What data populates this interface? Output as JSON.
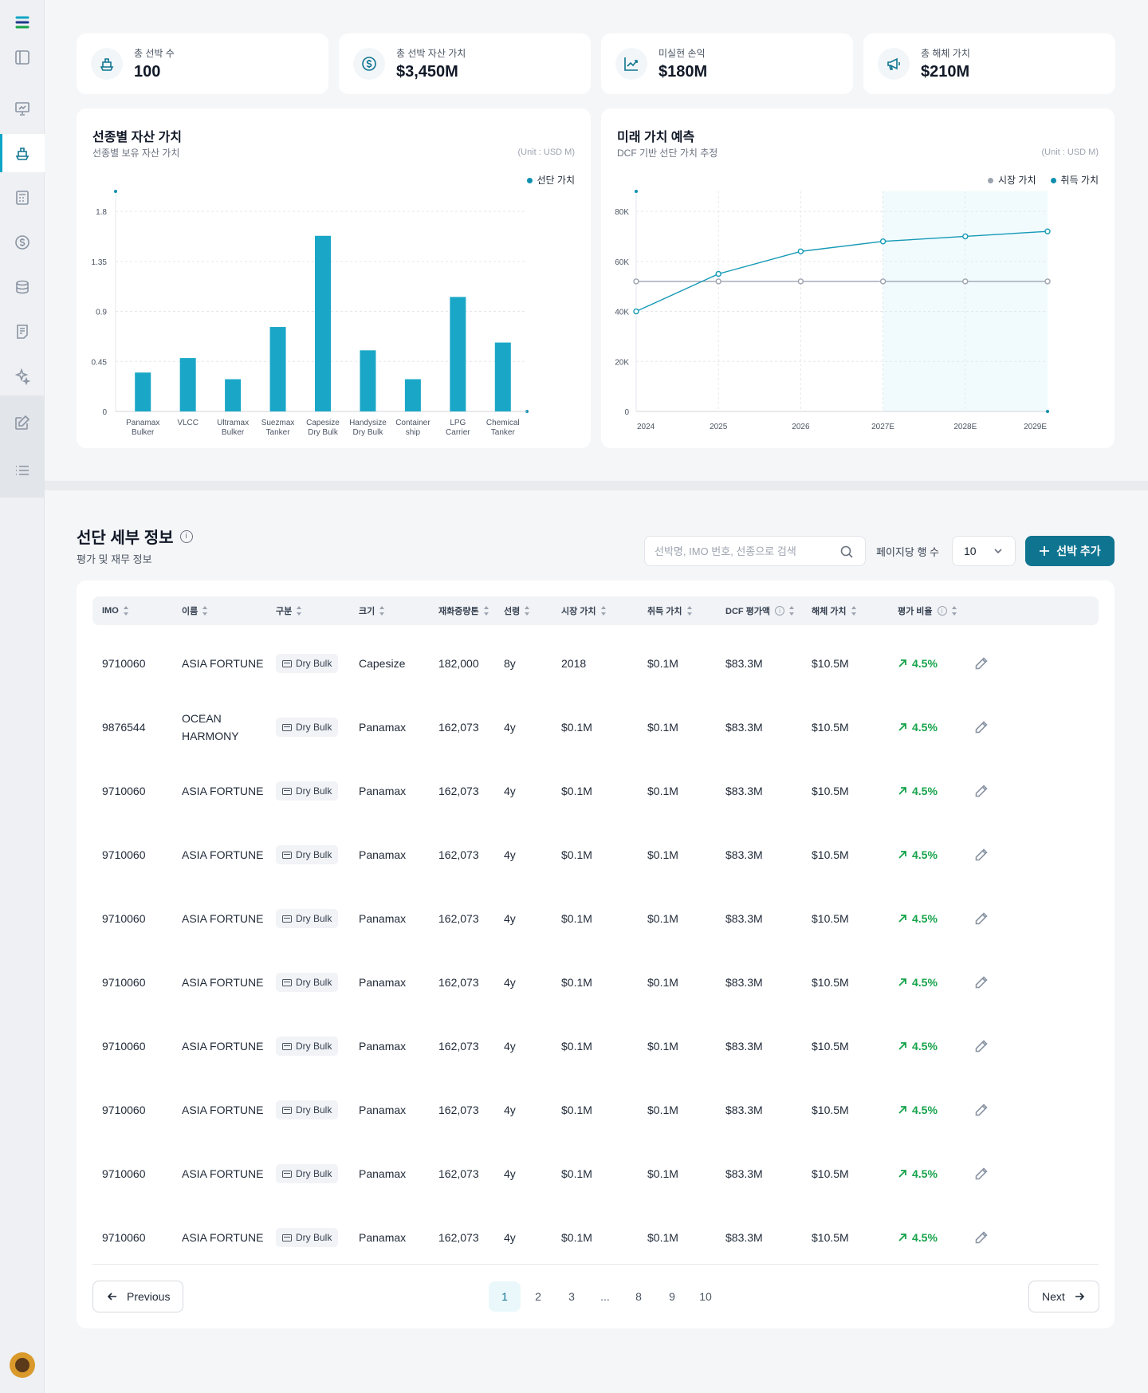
{
  "kpis": [
    {
      "label": "총 선박 수",
      "value": "100",
      "icon": "ship-icon"
    },
    {
      "label": "총 선박 자산 가치",
      "value": "$3,450M",
      "icon": "dollar-icon"
    },
    {
      "label": "미실현 손익",
      "value": "$180M",
      "icon": "chart-line-icon"
    },
    {
      "label": "총 해체 가치",
      "value": "$210M",
      "icon": "megaphone-icon"
    }
  ],
  "bar_card": {
    "title": "선종별 자산 가치",
    "subtitle": "선종별 보유 자산 가치",
    "unit": "(Unit : USD M)",
    "legend": "선단 가치"
  },
  "line_card": {
    "title": "미래 가치 예측",
    "subtitle": "DCF 기반 선단 가치 추정",
    "unit": "(Unit : USD M)",
    "legend_market": "시장 가치",
    "legend_acq": "취득 가치"
  },
  "chart_data": [
    {
      "type": "bar",
      "categories": [
        [
          "Panamax",
          "Bulker"
        ],
        [
          "VLCC"
        ],
        [
          "Ultramax",
          "Bulker"
        ],
        [
          "Suezmax",
          "Tanker"
        ],
        [
          "Capesize",
          "Dry Bulk"
        ],
        [
          "Handysize",
          "Dry Bulk"
        ],
        [
          "Container",
          "ship"
        ],
        [
          "LPG",
          "Carrier"
        ],
        [
          "Chemical",
          "Tanker"
        ]
      ],
      "series": [
        {
          "name": "선단 가치",
          "values": [
            0.35,
            0.48,
            0.29,
            0.76,
            1.58,
            0.55,
            0.29,
            1.03,
            0.62
          ]
        }
      ],
      "yticks": [
        "0",
        "0.45",
        "0.9",
        "1.35",
        "1.8"
      ],
      "ylim": [
        0,
        1.98
      ],
      "color": "#1aa7c7"
    },
    {
      "type": "line",
      "x": [
        "2024",
        "2025",
        "2026",
        "2027E",
        "2028E",
        "2029E"
      ],
      "series": [
        {
          "name": "시장 가치",
          "values": [
            52000,
            52000,
            52000,
            52000,
            52000,
            52000
          ],
          "color": "#9ca3af"
        },
        {
          "name": "취득 가치",
          "values": [
            40000,
            55000,
            64000,
            68000,
            70000,
            72000
          ],
          "color": "#1599b6"
        }
      ],
      "yticks": [
        "0",
        "20K",
        "40K",
        "60K",
        "80K"
      ],
      "ylim": [
        0,
        88000
      ],
      "forecast_from": "2027E"
    }
  ],
  "section": {
    "title": "선단 세부 정보",
    "subtitle": "평가 및 재무 정보",
    "search_placeholder": "선박명, IMO 번호, 선종으로 검색",
    "rows_label": "페이지당 행 수",
    "rows_value": "10",
    "add_label": "선박 추가"
  },
  "columns": [
    "IMO",
    "이름",
    "구분",
    "크기",
    "재화중량톤",
    "선령",
    "시장 가치",
    "취득 가치",
    "DCF 평가액",
    "해체 가치",
    "평가 비율"
  ],
  "rows": [
    {
      "imo": "9710060",
      "name": "ASIA FORTUNE",
      "type": "Dry Bulk",
      "size": "Capesize",
      "dwt": "182,000",
      "age": "8y",
      "market": "2018",
      "acq": "$0.1M",
      "dcf": "$83.3M",
      "scrap": "$10.5M",
      "rate": "4.5%"
    },
    {
      "imo": "9876544",
      "name": "OCEAN HARMONY",
      "type": "Dry Bulk",
      "size": "Panamax",
      "dwt": "162,073",
      "age": "4y",
      "market": "$0.1M",
      "acq": "$0.1M",
      "dcf": "$83.3M",
      "scrap": "$10.5M",
      "rate": "4.5%"
    },
    {
      "imo": "9710060",
      "name": "ASIA FORTUNE",
      "type": "Dry Bulk",
      "size": "Panamax",
      "dwt": "162,073",
      "age": "4y",
      "market": "$0.1M",
      "acq": "$0.1M",
      "dcf": "$83.3M",
      "scrap": "$10.5M",
      "rate": "4.5%"
    },
    {
      "imo": "9710060",
      "name": "ASIA FORTUNE",
      "type": "Dry Bulk",
      "size": "Panamax",
      "dwt": "162,073",
      "age": "4y",
      "market": "$0.1M",
      "acq": "$0.1M",
      "dcf": "$83.3M",
      "scrap": "$10.5M",
      "rate": "4.5%"
    },
    {
      "imo": "9710060",
      "name": "ASIA FORTUNE",
      "type": "Dry Bulk",
      "size": "Panamax",
      "dwt": "162,073",
      "age": "4y",
      "market": "$0.1M",
      "acq": "$0.1M",
      "dcf": "$83.3M",
      "scrap": "$10.5M",
      "rate": "4.5%"
    },
    {
      "imo": "9710060",
      "name": "ASIA FORTUNE",
      "type": "Dry Bulk",
      "size": "Panamax",
      "dwt": "162,073",
      "age": "4y",
      "market": "$0.1M",
      "acq": "$0.1M",
      "dcf": "$83.3M",
      "scrap": "$10.5M",
      "rate": "4.5%"
    },
    {
      "imo": "9710060",
      "name": "ASIA FORTUNE",
      "type": "Dry Bulk",
      "size": "Panamax",
      "dwt": "162,073",
      "age": "4y",
      "market": "$0.1M",
      "acq": "$0.1M",
      "dcf": "$83.3M",
      "scrap": "$10.5M",
      "rate": "4.5%"
    },
    {
      "imo": "9710060",
      "name": "ASIA FORTUNE",
      "type": "Dry Bulk",
      "size": "Panamax",
      "dwt": "162,073",
      "age": "4y",
      "market": "$0.1M",
      "acq": "$0.1M",
      "dcf": "$83.3M",
      "scrap": "$10.5M",
      "rate": "4.5%"
    },
    {
      "imo": "9710060",
      "name": "ASIA FORTUNE",
      "type": "Dry Bulk",
      "size": "Panamax",
      "dwt": "162,073",
      "age": "4y",
      "market": "$0.1M",
      "acq": "$0.1M",
      "dcf": "$83.3M",
      "scrap": "$10.5M",
      "rate": "4.5%"
    },
    {
      "imo": "9710060",
      "name": "ASIA FORTUNE",
      "type": "Dry Bulk",
      "size": "Panamax",
      "dwt": "162,073",
      "age": "4y",
      "market": "$0.1M",
      "acq": "$0.1M",
      "dcf": "$83.3M",
      "scrap": "$10.5M",
      "rate": "4.5%"
    }
  ],
  "pagination": {
    "previous": "Previous",
    "next": "Next",
    "pages": [
      "1",
      "2",
      "3",
      "...",
      "8",
      "9",
      "10"
    ],
    "current": "1"
  },
  "colors": {
    "accent": "#0e7490",
    "bar": "#1aa7c7",
    "positive": "#16a34a"
  }
}
